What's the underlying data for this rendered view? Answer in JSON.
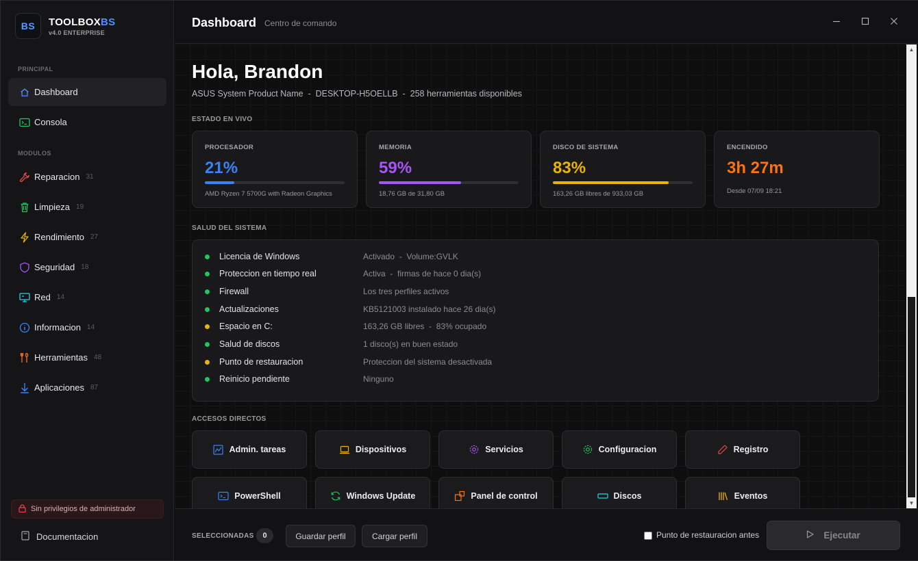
{
  "app": {
    "logo_text": "BS",
    "name_main": "TOOLBOX",
    "name_accent": "BS",
    "version": "v4.0 ENTERPRISE"
  },
  "sidebar": {
    "section_principal": "PRINCIPAL",
    "section_modulos": "MODULOS",
    "principal": [
      {
        "label": "Dashboard",
        "icon": "home-icon",
        "active": true
      },
      {
        "label": "Consola",
        "icon": "terminal-icon"
      }
    ],
    "modulos": [
      {
        "label": "Reparacion",
        "count": "31",
        "icon": "wrench-icon",
        "color": "#e5484d"
      },
      {
        "label": "Limpieza",
        "count": "19",
        "icon": "trash-icon",
        "color": "#22c55e"
      },
      {
        "label": "Rendimiento",
        "count": "27",
        "icon": "bolt-icon",
        "color": "#eab308"
      },
      {
        "label": "Seguridad",
        "count": "18",
        "icon": "shield-icon",
        "color": "#a855f7"
      },
      {
        "label": "Red",
        "count": "14",
        "icon": "network-icon",
        "color": "#22d3ee"
      },
      {
        "label": "Informacion",
        "count": "14",
        "icon": "info-icon",
        "color": "#3b82f6"
      },
      {
        "label": "Herramientas",
        "count": "48",
        "icon": "tools-icon",
        "color": "#f97316"
      },
      {
        "label": "Aplicaciones",
        "count": "87",
        "icon": "download-icon",
        "color": "#3b82f6"
      }
    ],
    "privileges": "Sin privilegios de administrador",
    "documentation": "Documentacion"
  },
  "titlebar": {
    "title": "Dashboard",
    "subtitle": "Centro de comando"
  },
  "main": {
    "greeting": "Hola, Brandon",
    "system_line": "ASUS System Product Name  -  DESKTOP-H5OELLB  -  258 herramientas disponibles",
    "live_label": "ESTADO EN VIVO",
    "health_label": "SALUD DEL SISTEMA",
    "shortcuts_label": "ACCESOS DIRECTOS"
  },
  "live_cards": [
    {
      "key": "PROCESADOR",
      "value": "21%",
      "percent": 21,
      "color": "#3b82f6",
      "detail": "AMD Ryzen 7 5700G with Radeon Graphics"
    },
    {
      "key": "MEMORIA",
      "value": "59%",
      "percent": 59,
      "color": "#a855f7",
      "detail": "18,76 GB de 31,80 GB"
    },
    {
      "key": "DISCO DE SISTEMA",
      "value": "83%",
      "percent": 83,
      "color": "#eab308",
      "detail": "163,26 GB libres de 933,03 GB"
    },
    {
      "key": "ENCENDIDO",
      "value": "3h 27m",
      "color": "#f97316",
      "detail": "Desde 07/09 18:21"
    }
  ],
  "health": [
    {
      "name": "Licencia de Windows",
      "value": "Activado  -  Volume:GVLK",
      "status": "#22c55e"
    },
    {
      "name": "Proteccion en tiempo real",
      "value": "Activa  -  firmas de hace 0 dia(s)",
      "status": "#22c55e"
    },
    {
      "name": "Firewall",
      "value": "Los tres perfiles activos",
      "status": "#22c55e"
    },
    {
      "name": "Actualizaciones",
      "value": "KB5121003 instalado hace 26 dia(s)",
      "status": "#22c55e"
    },
    {
      "name": "Espacio en C:",
      "value": "163,26 GB libres  -  83% ocupado",
      "status": "#eab308"
    },
    {
      "name": "Salud de discos",
      "value": "1 disco(s) en buen estado",
      "status": "#22c55e"
    },
    {
      "name": "Punto de restauracion",
      "value": "Proteccion del sistema desactivada",
      "status": "#eab308"
    },
    {
      "name": "Reinicio pendiente",
      "value": "Ninguno",
      "status": "#22c55e"
    }
  ],
  "shortcuts": [
    {
      "label": "Admin. tareas",
      "icon": "chart-icon",
      "color": "#3b82f6"
    },
    {
      "label": "Dispositivos",
      "icon": "laptop-icon",
      "color": "#eab308"
    },
    {
      "label": "Servicios",
      "icon": "gear-icon",
      "color": "#a855f7"
    },
    {
      "label": "Configuracion",
      "icon": "settings-icon",
      "color": "#22c55e"
    },
    {
      "label": "Registro",
      "icon": "pencil-icon",
      "color": "#e5484d"
    },
    {
      "label": "PowerShell",
      "icon": "powershell-icon",
      "color": "#3b82f6"
    },
    {
      "label": "Windows Update",
      "icon": "refresh-icon",
      "color": "#22c55e"
    },
    {
      "label": "Panel de control",
      "icon": "panel-icon",
      "color": "#f97316"
    },
    {
      "label": "Discos",
      "icon": "disk-icon",
      "color": "#22d3ee"
    },
    {
      "label": "Eventos",
      "icon": "books-icon",
      "color": "#eab308"
    }
  ],
  "footer": {
    "selected_label": "SELECCIONADAS",
    "selected_count": "0",
    "save_profile": "Guardar perfil",
    "load_profile": "Cargar perfil",
    "restore_point": "Punto de restauracion antes",
    "run": "Ejecutar"
  }
}
